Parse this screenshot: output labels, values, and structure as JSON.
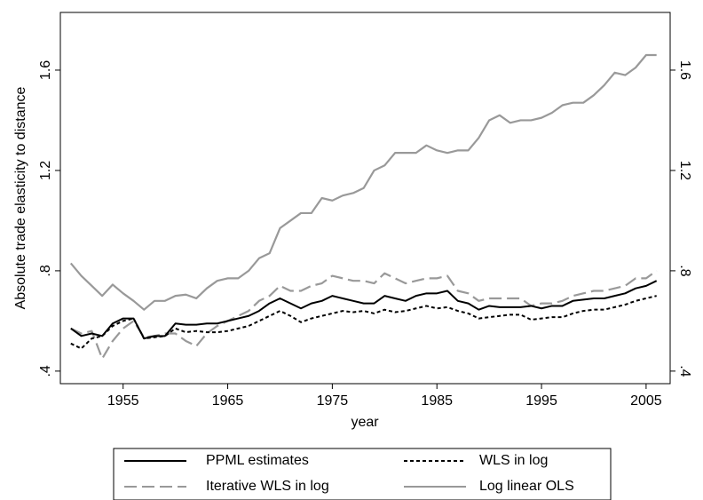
{
  "chart_data": {
    "type": "line",
    "y_label": "Absolute trade elasticity to distance",
    "x_label": "year",
    "x": [
      1950,
      1951,
      1952,
      1953,
      1954,
      1955,
      1956,
      1957,
      1958,
      1959,
      1960,
      1961,
      1962,
      1963,
      1964,
      1965,
      1966,
      1967,
      1968,
      1969,
      1970,
      1971,
      1972,
      1973,
      1974,
      1975,
      1976,
      1977,
      1978,
      1979,
      1980,
      1981,
      1982,
      1983,
      1984,
      1985,
      1986,
      1987,
      1988,
      1989,
      1990,
      1991,
      1992,
      1993,
      1994,
      1995,
      1996,
      1997,
      1998,
      1999,
      2000,
      2001,
      2002,
      2003,
      2004,
      2005,
      2006
    ],
    "xlim": [
      1949,
      2007.3
    ],
    "xticks": [
      1955,
      1965,
      1975,
      1985,
      1995,
      2005
    ],
    "ylim": [
      0.35,
      1.83
    ],
    "yticks": [
      {
        "value": 0.4,
        "label": ".4"
      },
      {
        "value": 0.8,
        "label": ".8"
      },
      {
        "value": 1.2,
        "label": "1.2"
      },
      {
        "value": 1.6,
        "label": "1.6"
      }
    ],
    "y2lim": [
      0.35,
      1.83
    ],
    "y2ticks": [
      {
        "value": 0.4,
        "label": ".4"
      },
      {
        "value": 0.8,
        "label": ".8"
      },
      {
        "value": 1.2,
        "label": "1.2"
      },
      {
        "value": 1.6,
        "label": "1.6"
      }
    ],
    "legend_position": "bottom",
    "series": [
      {
        "name": "PPML estimates",
        "color": "#000000",
        "dash": "solid",
        "values": [
          0.57,
          0.54,
          0.55,
          0.54,
          0.59,
          0.61,
          0.61,
          0.53,
          0.54,
          0.54,
          0.59,
          0.585,
          0.585,
          0.59,
          0.59,
          0.6,
          0.61,
          0.62,
          0.64,
          0.67,
          0.69,
          0.67,
          0.65,
          0.67,
          0.68,
          0.7,
          0.69,
          0.68,
          0.67,
          0.67,
          0.7,
          0.69,
          0.68,
          0.7,
          0.71,
          0.71,
          0.72,
          0.68,
          0.67,
          0.645,
          0.66,
          0.655,
          0.655,
          0.655,
          0.66,
          0.65,
          0.66,
          0.66,
          0.68,
          0.685,
          0.69,
          0.69,
          0.7,
          0.71,
          0.73,
          0.74,
          0.76
        ]
      },
      {
        "name": "WLS in log",
        "color": "#000000",
        "dash": "dotted",
        "values": [
          0.51,
          0.49,
          0.53,
          0.54,
          0.58,
          0.6,
          0.61,
          0.53,
          0.535,
          0.54,
          0.57,
          0.555,
          0.56,
          0.555,
          0.555,
          0.56,
          0.57,
          0.58,
          0.6,
          0.62,
          0.64,
          0.62,
          0.595,
          0.61,
          0.62,
          0.63,
          0.64,
          0.635,
          0.64,
          0.63,
          0.645,
          0.635,
          0.64,
          0.65,
          0.66,
          0.65,
          0.655,
          0.64,
          0.63,
          0.61,
          0.615,
          0.62,
          0.625,
          0.625,
          0.605,
          0.61,
          0.615,
          0.615,
          0.63,
          0.64,
          0.645,
          0.645,
          0.655,
          0.665,
          0.68,
          0.69,
          0.7
        ]
      },
      {
        "name": "Iterative WLS in log",
        "color": "#999999",
        "dash": "dashed",
        "values": [
          0.57,
          0.55,
          0.56,
          0.45,
          0.52,
          0.57,
          0.6,
          0.535,
          0.54,
          0.55,
          0.55,
          0.52,
          0.5,
          0.55,
          0.58,
          0.6,
          0.62,
          0.64,
          0.68,
          0.7,
          0.74,
          0.72,
          0.72,
          0.74,
          0.75,
          0.78,
          0.77,
          0.76,
          0.76,
          0.75,
          0.79,
          0.77,
          0.75,
          0.76,
          0.77,
          0.77,
          0.78,
          0.72,
          0.71,
          0.68,
          0.69,
          0.69,
          0.69,
          0.69,
          0.66,
          0.67,
          0.67,
          0.68,
          0.7,
          0.71,
          0.72,
          0.72,
          0.73,
          0.74,
          0.77,
          0.77,
          0.8
        ]
      },
      {
        "name": "Log linear OLS",
        "color": "#999999",
        "dash": "solid",
        "values": [
          0.83,
          0.78,
          0.74,
          0.7,
          0.745,
          0.71,
          0.68,
          0.645,
          0.68,
          0.68,
          0.7,
          0.705,
          0.69,
          0.73,
          0.76,
          0.77,
          0.77,
          0.8,
          0.85,
          0.87,
          0.97,
          1.0,
          1.03,
          1.03,
          1.09,
          1.08,
          1.1,
          1.11,
          1.13,
          1.2,
          1.22,
          1.27,
          1.27,
          1.27,
          1.3,
          1.28,
          1.27,
          1.28,
          1.28,
          1.33,
          1.4,
          1.42,
          1.39,
          1.4,
          1.4,
          1.41,
          1.43,
          1.46,
          1.47,
          1.47,
          1.5,
          1.54,
          1.59,
          1.58,
          1.61,
          1.66,
          1.66
        ]
      }
    ]
  }
}
